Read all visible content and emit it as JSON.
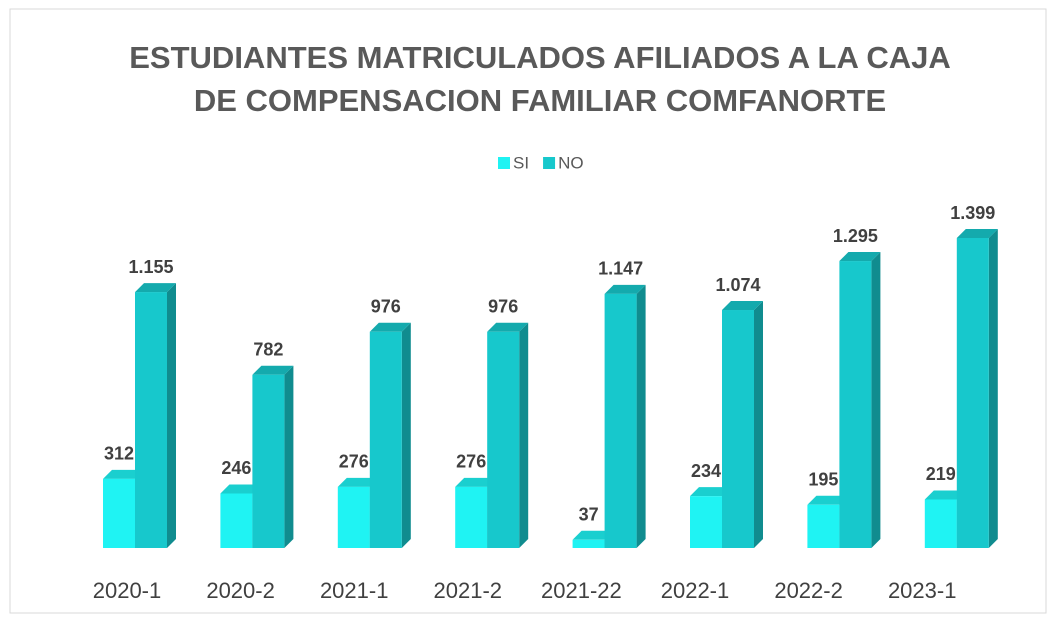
{
  "chart_data": {
    "type": "bar3d",
    "title": [
      "ESTUDIANTES MATRICULADOS AFILIADOS A LA CAJA",
      "DE COMPENSACION FAMILIAR COMFANORTE"
    ],
    "categories": [
      "2020-1",
      "2020-2",
      "2021-1",
      "2021-2",
      "2021-22",
      "2022-1",
      "2022-2",
      "2023-1"
    ],
    "series": [
      {
        "name": "SI",
        "color": "#1ff3f3",
        "values": [
          312,
          246,
          276,
          276,
          37,
          234,
          195,
          219
        ],
        "value_labels": [
          "312",
          "246",
          "276",
          "276",
          "37",
          "234",
          "195",
          "219"
        ]
      },
      {
        "name": "NO",
        "color": "#17c8cc",
        "values": [
          1155,
          782,
          976,
          976,
          1147,
          1074,
          1295,
          1399
        ],
        "value_labels": [
          "1.155",
          "782",
          "976",
          "976",
          "1.147",
          "1.074",
          "1.295",
          "1.399"
        ]
      }
    ],
    "legend": "top"
  }
}
